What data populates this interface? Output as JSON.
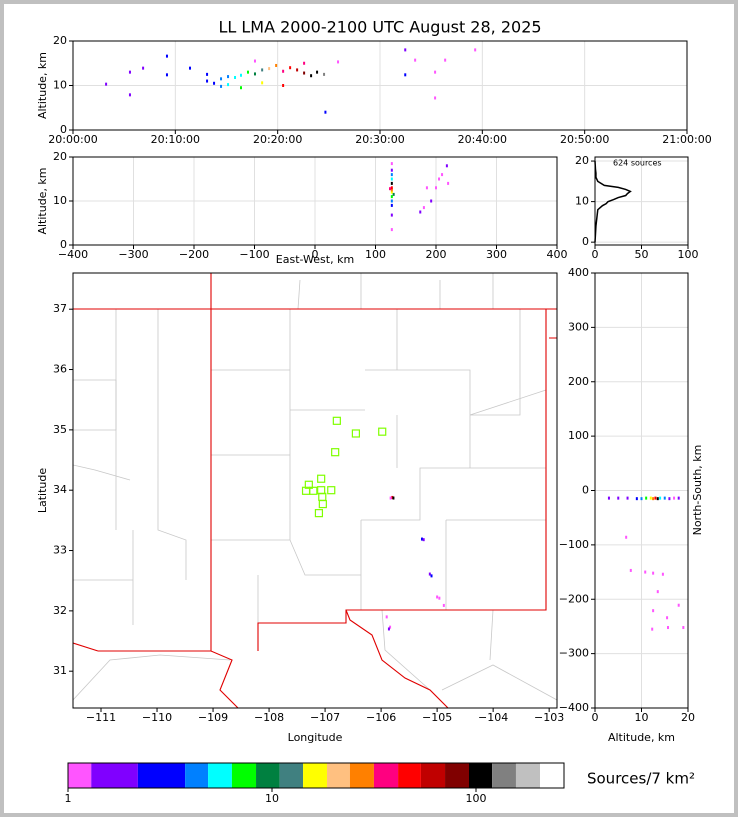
{
  "chart_data": [
    {
      "type": "scatter",
      "title": "LL LMA 2000-2100 UTC August 28, 2025",
      "ylabel": "Altitude, km",
      "grid": true,
      "xlim": [
        "20:00:00",
        "21:00:00"
      ],
      "xticks": [
        "20:00:00",
        "20:10:00",
        "20:20:00",
        "20:30:00",
        "20:40:00",
        "20:50:00",
        "21:00:00"
      ],
      "ylim": [
        0,
        20
      ],
      "yticks": [
        0,
        10,
        20
      ],
      "series": [
        {
          "x": [
            "20:03:14",
            "20:05:34",
            "20:05:34",
            "20:06:51",
            "20:09:11",
            "20:09:11",
            "20:11:26",
            "20:13:06",
            "20:13:06",
            "20:13:47",
            "20:14:28",
            "20:14:28",
            "20:15:09",
            "20:15:09",
            "20:15:50",
            "20:16:25",
            "20:16:25",
            "20:17:06",
            "20:17:47",
            "20:17:47",
            "20:18:29",
            "20:18:29",
            "20:19:10",
            "20:19:51",
            "20:20:32",
            "20:20:32",
            "20:21:13",
            "20:21:54",
            "20:22:35",
            "20:22:35",
            "20:23:16",
            "20:23:51",
            "20:24:32",
            "20:24:40",
            "20:25:54",
            "20:32:28",
            "20:32:28",
            "20:33:26",
            "20:35:23",
            "20:35:23",
            "20:36:22",
            "20:39:18"
          ],
          "values": [
            10.3,
            13,
            7.9,
            13.9,
            16.6,
            12.4,
            13.9,
            11,
            12.5,
            10.5,
            11.5,
            9.8,
            12,
            10.2,
            11.8,
            12.3,
            9.5,
            13,
            12.6,
            15.5,
            13.5,
            10.6,
            13.8,
            14.5,
            13.2,
            10,
            14,
            13.5,
            12.8,
            15,
            12.2,
            13,
            12.5,
            4,
            15.3,
            18,
            12.4,
            15.7,
            13,
            7.2,
            15.7,
            18
          ],
          "colors": [
            "#8000ff",
            "#8000ff",
            "#8000ff",
            "#8000ff",
            "#0000ff",
            "#0000ff",
            "#0000ff",
            "#0000ff",
            "#0000ff",
            "#0000ff",
            "#0080ff",
            "#0080ff",
            "#0080ff",
            "#00ffff",
            "#00ffff",
            "#00ffff",
            "#00ff00",
            "#00ff00",
            "#008040",
            "#ff55ff",
            "#408080",
            "#ffff00",
            "#ffc080",
            "#ff8000",
            "#ff0080",
            "#ff0000",
            "#ff0000",
            "#c00000",
            "#800000",
            "#ff0080",
            "#000000",
            "#000000",
            "#808080",
            "#0000ff",
            "#ff55ff",
            "#8000ff",
            "#0000ff",
            "#ff55ff",
            "#ff55ff",
            "#ff55ff",
            "#ff55ff",
            "#ff55ff"
          ]
        }
      ]
    },
    {
      "type": "scatter",
      "xlabel": "East-West, km",
      "ylabel": "Altitude, km",
      "grid": true,
      "xlim": [
        -400,
        400
      ],
      "xticks": [
        {
          "value": -400,
          "label": "−400"
        },
        {
          "value": -300,
          "label": "−300"
        },
        {
          "value": -200,
          "label": "−200"
        },
        {
          "value": -100,
          "label": "−100"
        },
        0,
        100,
        200,
        300,
        400
      ],
      "ylim": [
        0,
        20
      ],
      "yticks": [
        0,
        10,
        20
      ],
      "series": [
        {
          "x": [
            127,
            127,
            127,
            127,
            127,
            127,
            127,
            127,
            127,
            127,
            127,
            127,
            127,
            130,
            124,
            174,
            180,
            185,
            192,
            200,
            205,
            210,
            218,
            220
          ],
          "values": [
            3.5,
            6.8,
            9,
            10,
            11,
            12,
            12.5,
            13,
            14,
            15,
            16,
            17,
            18.5,
            11.5,
            12.8,
            7.5,
            8.5,
            13,
            10,
            13,
            15,
            16,
            18,
            14
          ],
          "colors": [
            "#ff55ff",
            "#8000ff",
            "#0000ff",
            "#0080ff",
            "#00ff00",
            "#ffff00",
            "#ff8000",
            "#ff0000",
            "#000000",
            "#00ffff",
            "#0080ff",
            "#8000ff",
            "#ff55ff",
            "#008040",
            "#ff0080",
            "#8000ff",
            "#ff55ff",
            "#ff55ff",
            "#8000ff",
            "#ff55ff",
            "#ff55ff",
            "#ff55ff",
            "#8000ff",
            "#ff55ff"
          ]
        }
      ]
    },
    {
      "type": "line",
      "orientation": "horizontal",
      "annotation": "624 sources",
      "grid": true,
      "xlim": [
        0,
        100
      ],
      "xticks": [
        0,
        50,
        100
      ],
      "ylim": [
        -0.7,
        21
      ],
      "yticks": [
        0,
        10,
        20
      ],
      "altitudes": [
        0,
        4,
        6,
        8,
        9,
        9.5,
        10,
        10.5,
        11,
        11.5,
        12,
        12.5,
        13,
        13.5,
        14,
        15,
        16,
        17,
        18,
        20
      ],
      "values": [
        0,
        1,
        2,
        3,
        8,
        12,
        14,
        20,
        25,
        33,
        35,
        38,
        33,
        25,
        10,
        3,
        1,
        1,
        0.5,
        0
      ],
      "color": "#000000"
    },
    {
      "type": "map",
      "xlabel": "Longitude",
      "ylabel": "Latitude",
      "grid": false,
      "xlim": [
        -111.5,
        -102.86
      ],
      "xticks": [
        {
          "value": -111,
          "label": "−111"
        },
        {
          "value": -110,
          "label": "−110"
        },
        {
          "value": -109,
          "label": "−109"
        },
        {
          "value": -108,
          "label": "−108"
        },
        {
          "value": -107,
          "label": "−107"
        },
        {
          "value": -106,
          "label": "−106"
        },
        {
          "value": -105,
          "label": "−105"
        },
        {
          "value": -104,
          "label": "−104"
        },
        {
          "value": -103,
          "label": "−103"
        }
      ],
      "ylim": [
        30.39,
        37.6
      ],
      "yticks": [
        31,
        32,
        33,
        34,
        35,
        36,
        37
      ],
      "series": [
        {
          "x": [
            -105.8,
            -105.78,
            -105.83,
            -105.27,
            -105.24,
            -105.13,
            -105.1,
            -105,
            -104.96,
            -104.88,
            -105.84,
            -105.86,
            -105.9
          ],
          "values": [
            33.88,
            33.87,
            33.87,
            33.19,
            33.18,
            32.61,
            32.58,
            32.23,
            32.21,
            32.09,
            31.73,
            31.7,
            31.9
          ],
          "colors": [
            "#ff0000",
            "#000000",
            "#ff55ff",
            "#0000ff",
            "#8000ff",
            "#8000ff",
            "#0000ff",
            "#ff55ff",
            "#ff55ff",
            "#ff55ff",
            "#ff55ff",
            "#8000ff",
            "#ff55ff"
          ]
        },
        {
          "marker": "square",
          "color": "#80ff00",
          "x": [
            -106.79,
            -106.45,
            -105.98,
            -106.82,
            -107.07,
            -107.29,
            -107.34,
            -107.21,
            -107.07,
            -106.89,
            -107.05,
            -107.04,
            -107.11
          ],
          "values": [
            35.15,
            34.94,
            34.97,
            34.63,
            34.19,
            34.09,
            33.99,
            33.99,
            34.0,
            34.0,
            33.89,
            33.77,
            33.62
          ]
        }
      ],
      "colorbar": {
        "label": "Sources/7 km²",
        "log": true,
        "lim": [
          1,
          270
        ],
        "ticks": [
          1,
          10,
          100
        ],
        "bounds": [
          1,
          1.3,
          2.2,
          3.75,
          4.86,
          6.36,
          8.35,
          10.9,
          14.2,
          18.6,
          24.1,
          31.6,
          41.5,
          53.7,
          70.5,
          92.4,
          120,
          157,
          206,
          270
        ],
        "colors": [
          "#ff55ff",
          "#8000ff",
          "#0000ff",
          "#0080ff",
          "#00ffff",
          "#00ff00",
          "#008040",
          "#408080",
          "#ffff00",
          "#ffc080",
          "#ff8000",
          "#ff0080",
          "#ff0000",
          "#c00000",
          "#800000",
          "#000000",
          "#808080",
          "#c0c0c0",
          "#ffffff"
        ]
      }
    },
    {
      "type": "scatter",
      "xlabel": "Altitude, km",
      "ylabel": "North-South, km",
      "grid": true,
      "xlim": [
        0,
        20
      ],
      "xticks": [
        0,
        10,
        20
      ],
      "ylim": [
        -400,
        400
      ],
      "yticks": [
        {
          "value": -400,
          "label": "−400"
        },
        {
          "value": -300,
          "label": "−300"
        },
        {
          "value": -200,
          "label": "−200"
        },
        {
          "value": -100,
          "label": "−100"
        },
        0,
        100,
        200,
        300,
        400
      ],
      "series": [
        {
          "x": [
            3,
            5,
            7,
            9,
            10,
            11,
            12,
            12.5,
            13,
            13.5,
            14,
            15,
            16,
            17,
            18,
            6.7,
            7.7,
            10.8,
            12.5,
            14.6,
            13.5,
            12.5,
            15.5,
            18,
            15.7,
            19,
            12.3
          ],
          "values": [
            -14,
            -14,
            -14,
            -15,
            -15,
            -14,
            -14,
            -15,
            -14,
            -15,
            -14,
            -14,
            -15,
            -14,
            -14,
            -86,
            -147,
            -150,
            -152,
            -154,
            -186,
            -221,
            -234,
            -211,
            -252,
            -252,
            -255
          ],
          "colors": [
            "#8000ff",
            "#8000ff",
            "#8000ff",
            "#0000ff",
            "#0080ff",
            "#00ff00",
            "#ffff00",
            "#ff8000",
            "#ff0000",
            "#000000",
            "#00ffff",
            "#0080ff",
            "#8000ff",
            "#ff55ff",
            "#8000ff",
            "#ff55ff",
            "#ff55ff",
            "#ff55ff",
            "#ff55ff",
            "#ff55ff",
            "#ff55ff",
            "#ff55ff",
            "#ff55ff",
            "#ff55ff",
            "#ff55ff",
            "#ff55ff",
            "#ff55ff"
          ]
        }
      ]
    }
  ]
}
